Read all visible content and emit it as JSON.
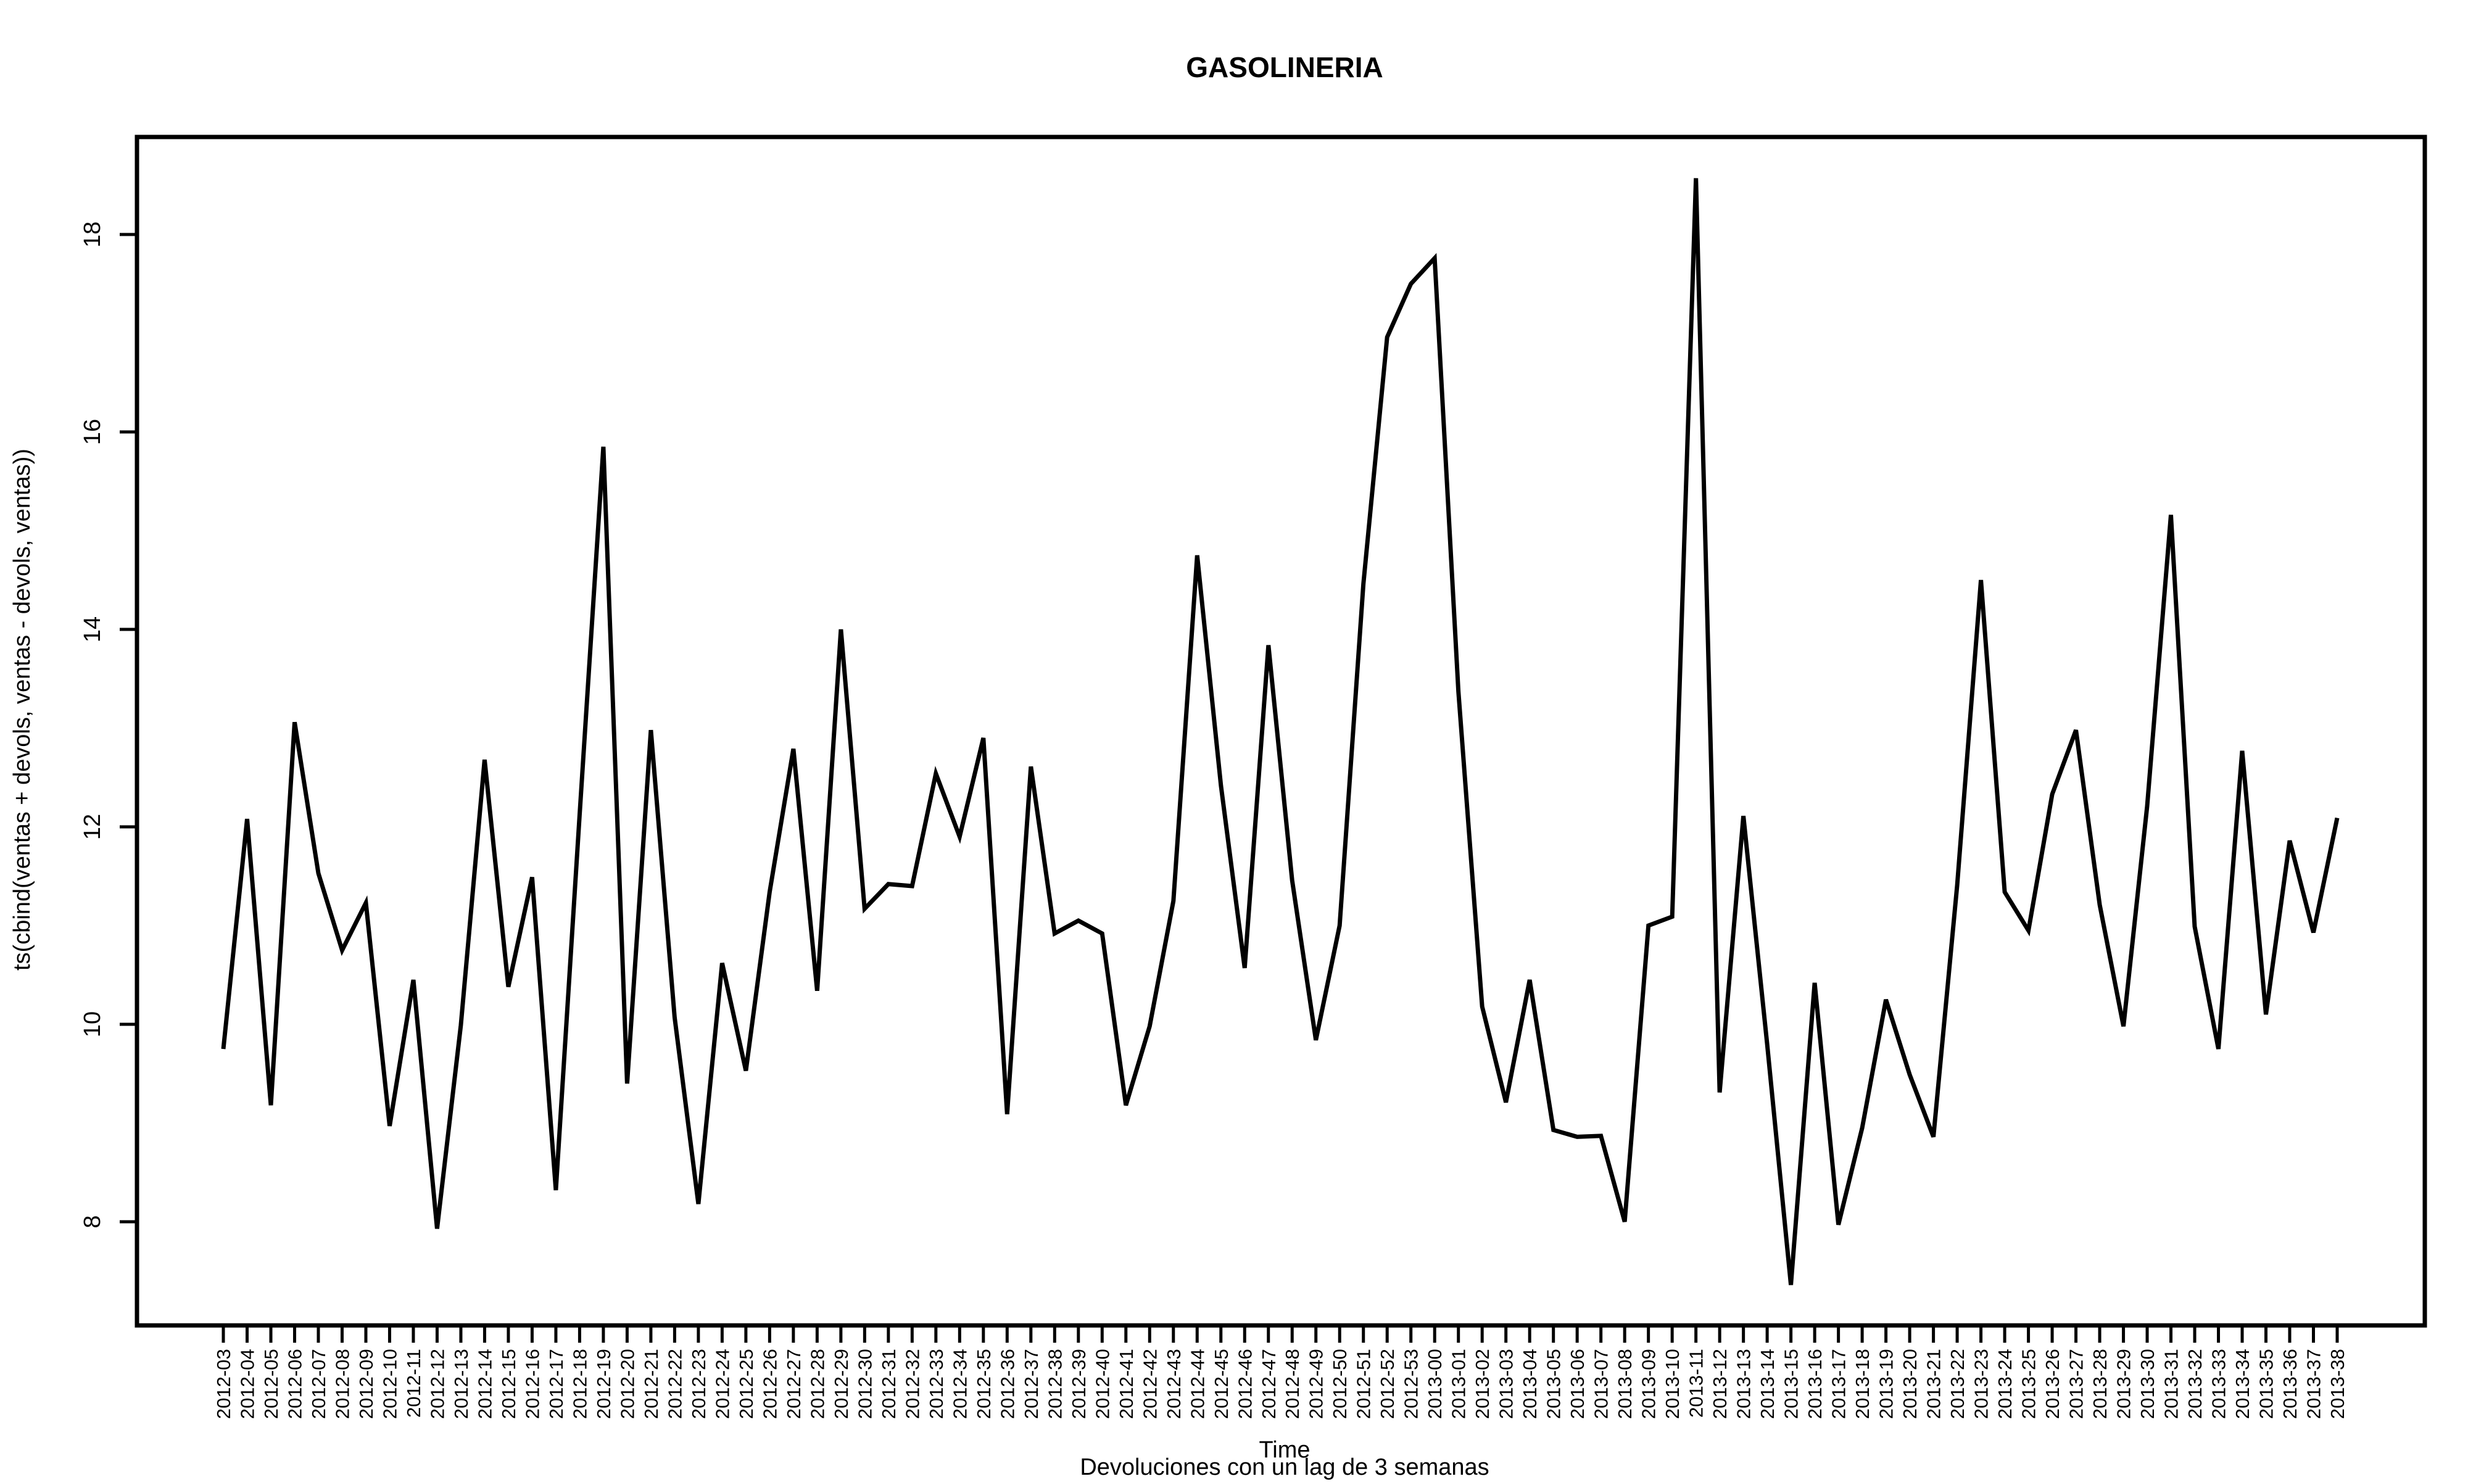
{
  "chart_data": {
    "type": "line",
    "title": "GASOLINERIA",
    "xlabel": "Time",
    "ylabel": "ts(cbind(ventas + devols, ventas - devols, ventas))",
    "subtitle": "Devoluciones con un lag de 3 semanas",
    "ylim": [
      6.9,
      19.0
    ],
    "yticks": [
      8,
      10,
      12,
      14,
      16,
      18
    ],
    "grid": false,
    "legend": "none",
    "categories": [
      "2012-03",
      "2012-04",
      "2012-05",
      "2012-06",
      "2012-07",
      "2012-08",
      "2012-09",
      "2012-10",
      "2012-11",
      "2012-12",
      "2012-13",
      "2012-14",
      "2012-15",
      "2012-16",
      "2012-17",
      "2012-18",
      "2012-19",
      "2012-20",
      "2012-21",
      "2012-22",
      "2012-23",
      "2012-24",
      "2012-25",
      "2012-26",
      "2012-27",
      "2012-28",
      "2012-29",
      "2012-30",
      "2012-31",
      "2012-32",
      "2012-33",
      "2012-34",
      "2012-35",
      "2012-36",
      "2012-37",
      "2012-38",
      "2012-39",
      "2012-40",
      "2012-41",
      "2012-42",
      "2012-43",
      "2012-44",
      "2012-45",
      "2012-46",
      "2012-47",
      "2012-48",
      "2012-49",
      "2012-50",
      "2012-51",
      "2012-52",
      "2012-53",
      "2013-00",
      "2013-01",
      "2013-02",
      "2013-03",
      "2013-04",
      "2013-05",
      "2013-06",
      "2013-07",
      "2013-08",
      "2013-09",
      "2013-10",
      "2013-11",
      "2013-12",
      "2013-13",
      "2013-14",
      "2013-15",
      "2013-16",
      "2013-17",
      "2013-18",
      "2013-19",
      "2013-20",
      "2013-21",
      "2013-22",
      "2013-23",
      "2013-24",
      "2013-25",
      "2013-26",
      "2013-27",
      "2013-28",
      "2013-29",
      "2013-30",
      "2013-31",
      "2013-32",
      "2013-33",
      "2013-34",
      "2013-35",
      "2013-36",
      "2013-37",
      "2013-38"
    ],
    "series": [
      {
        "color": "#000000",
        "values": [
          9.75,
          12.08,
          9.18,
          13.06,
          11.53,
          10.75,
          11.23,
          8.97,
          10.45,
          7.93,
          9.99,
          12.68,
          10.38,
          11.49,
          8.32,
          12.12,
          15.85,
          9.4,
          12.98,
          10.07,
          8.18,
          10.62,
          9.53,
          11.34,
          12.79,
          10.34,
          14.0,
          11.17,
          11.42,
          11.4,
          12.54,
          11.9,
          12.9,
          9.09,
          12.61,
          10.92,
          11.05,
          10.92,
          9.18,
          9.98,
          11.25,
          14.75,
          12.42,
          10.57,
          13.84,
          11.46,
          9.84,
          11.0,
          14.46,
          16.96,
          17.5,
          17.76,
          13.37,
          10.18,
          9.21,
          10.45,
          8.93,
          8.86,
          8.87,
          8.0,
          11.0,
          11.09,
          18.57,
          9.31,
          12.11,
          9.8,
          7.36,
          10.42,
          7.97,
          8.95,
          10.25,
          9.49,
          8.86,
          11.41,
          14.5,
          11.34,
          10.95,
          12.33,
          12.98,
          11.21,
          9.98,
          12.21,
          15.16,
          10.99,
          9.75,
          12.77,
          10.1,
          11.86,
          10.93,
          12.09
        ]
      }
    ]
  }
}
